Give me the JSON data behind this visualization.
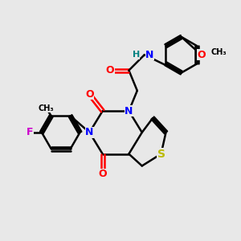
{
  "bg_color": "#e8e8e8",
  "bond_color": "#000000",
  "bond_width": 1.8,
  "atom_colors": {
    "N": "#0000ff",
    "O": "#ff0000",
    "S": "#bbbb00",
    "F": "#cc00cc",
    "H": "#008080",
    "C": "#000000"
  },
  "font_size_atom": 9,
  "font_size_small": 7
}
